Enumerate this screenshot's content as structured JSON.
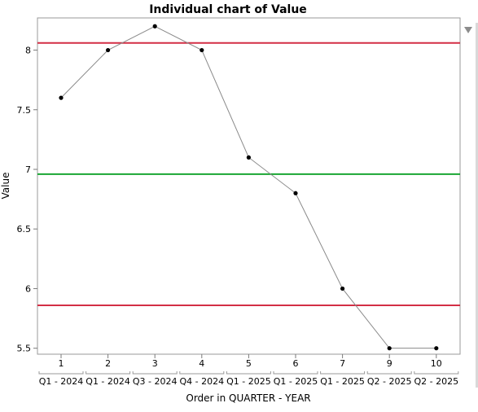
{
  "chart_data": {
    "type": "line",
    "title": "Individual chart of Value",
    "ylabel": "Value",
    "xlabel": "Order in QUARTER - YEAR",
    "ylim": [
      5.45,
      8.27
    ],
    "yticks": [
      5.5,
      6,
      6.5,
      7,
      7.5,
      8
    ],
    "ytick_labels": [
      "5.5",
      "6",
      "6.5",
      "7",
      "7.5",
      "8"
    ],
    "x_order_labels": [
      "1",
      "2",
      "3",
      "4",
      "5",
      "6",
      "7",
      "9",
      "10"
    ],
    "x_group_labels": [
      "Q1 - 2024",
      "Q1 - 2024",
      "Q3 - 2024",
      "Q4 - 2024",
      "Q1 - 2025",
      "Q1 - 2025",
      "Q1 - 2025",
      "Q2 - 2025",
      "Q2 - 2025"
    ],
    "series": [
      {
        "values": [
          7.6,
          8.0,
          8.2,
          8.0,
          7.1,
          6.8,
          6.0,
          5.5,
          5.5
        ]
      }
    ],
    "center_line": 6.96,
    "upper_limit": 8.06,
    "lower_limit": 5.86,
    "grid": false,
    "colors": {
      "limit": "#d32f45",
      "center": "#1aa632",
      "series_line": "#8a8a8a",
      "point": "#000000"
    }
  }
}
